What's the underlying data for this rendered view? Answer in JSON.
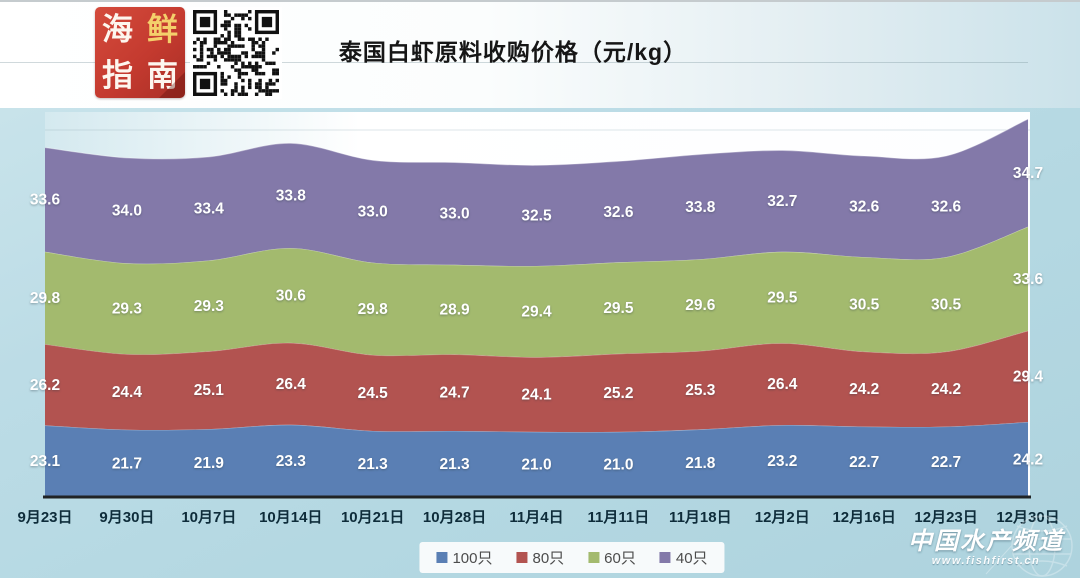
{
  "header": {
    "title": "泰国白虾原料收购价格（元/kg）",
    "logo_chars": [
      "海",
      "鲜",
      "指",
      "南"
    ]
  },
  "chart_data": {
    "type": "area",
    "stacked": true,
    "smooth": true,
    "title": "泰国白虾原料收购价格（元/kg）",
    "categories": [
      "9月23日",
      "9月30日",
      "10月7日",
      "10月14日",
      "10月21日",
      "10月28日",
      "11月4日",
      "11月11日",
      "11月18日",
      "12月2日",
      "12月16日",
      "12月23日",
      "12月30日"
    ],
    "series": [
      {
        "name": "100只",
        "color": "#5a7fb4",
        "values": [
          23.1,
          21.7,
          21.9,
          23.3,
          21.3,
          21.3,
          21.0,
          21.0,
          21.8,
          23.2,
          22.7,
          22.7,
          24.2
        ]
      },
      {
        "name": "80只",
        "color": "#b25350",
        "values": [
          26.2,
          24.4,
          25.1,
          26.4,
          24.5,
          24.7,
          24.1,
          25.2,
          25.3,
          26.4,
          24.2,
          24.2,
          29.4
        ]
      },
      {
        "name": "60只",
        "color": "#a3ba6e",
        "values": [
          29.8,
          29.3,
          29.3,
          30.6,
          29.8,
          28.9,
          29.4,
          29.5,
          29.6,
          29.5,
          30.5,
          30.5,
          33.6
        ]
      },
      {
        "name": "40只",
        "color": "#8379a9",
        "values": [
          33.6,
          34.0,
          33.4,
          33.8,
          33.0,
          33.0,
          32.5,
          32.6,
          33.8,
          32.7,
          32.6,
          32.6,
          34.7
        ]
      }
    ],
    "xlabel": "",
    "ylabel": "",
    "ylim": [
      0,
      124
    ],
    "grid": false,
    "data_labels": true,
    "label_color": "#ffffff",
    "axis_line_color": "#202325",
    "legend_position": "bottom"
  },
  "watermark": {
    "name": "中国水产频道",
    "url": "www.fishfirst.cn"
  }
}
